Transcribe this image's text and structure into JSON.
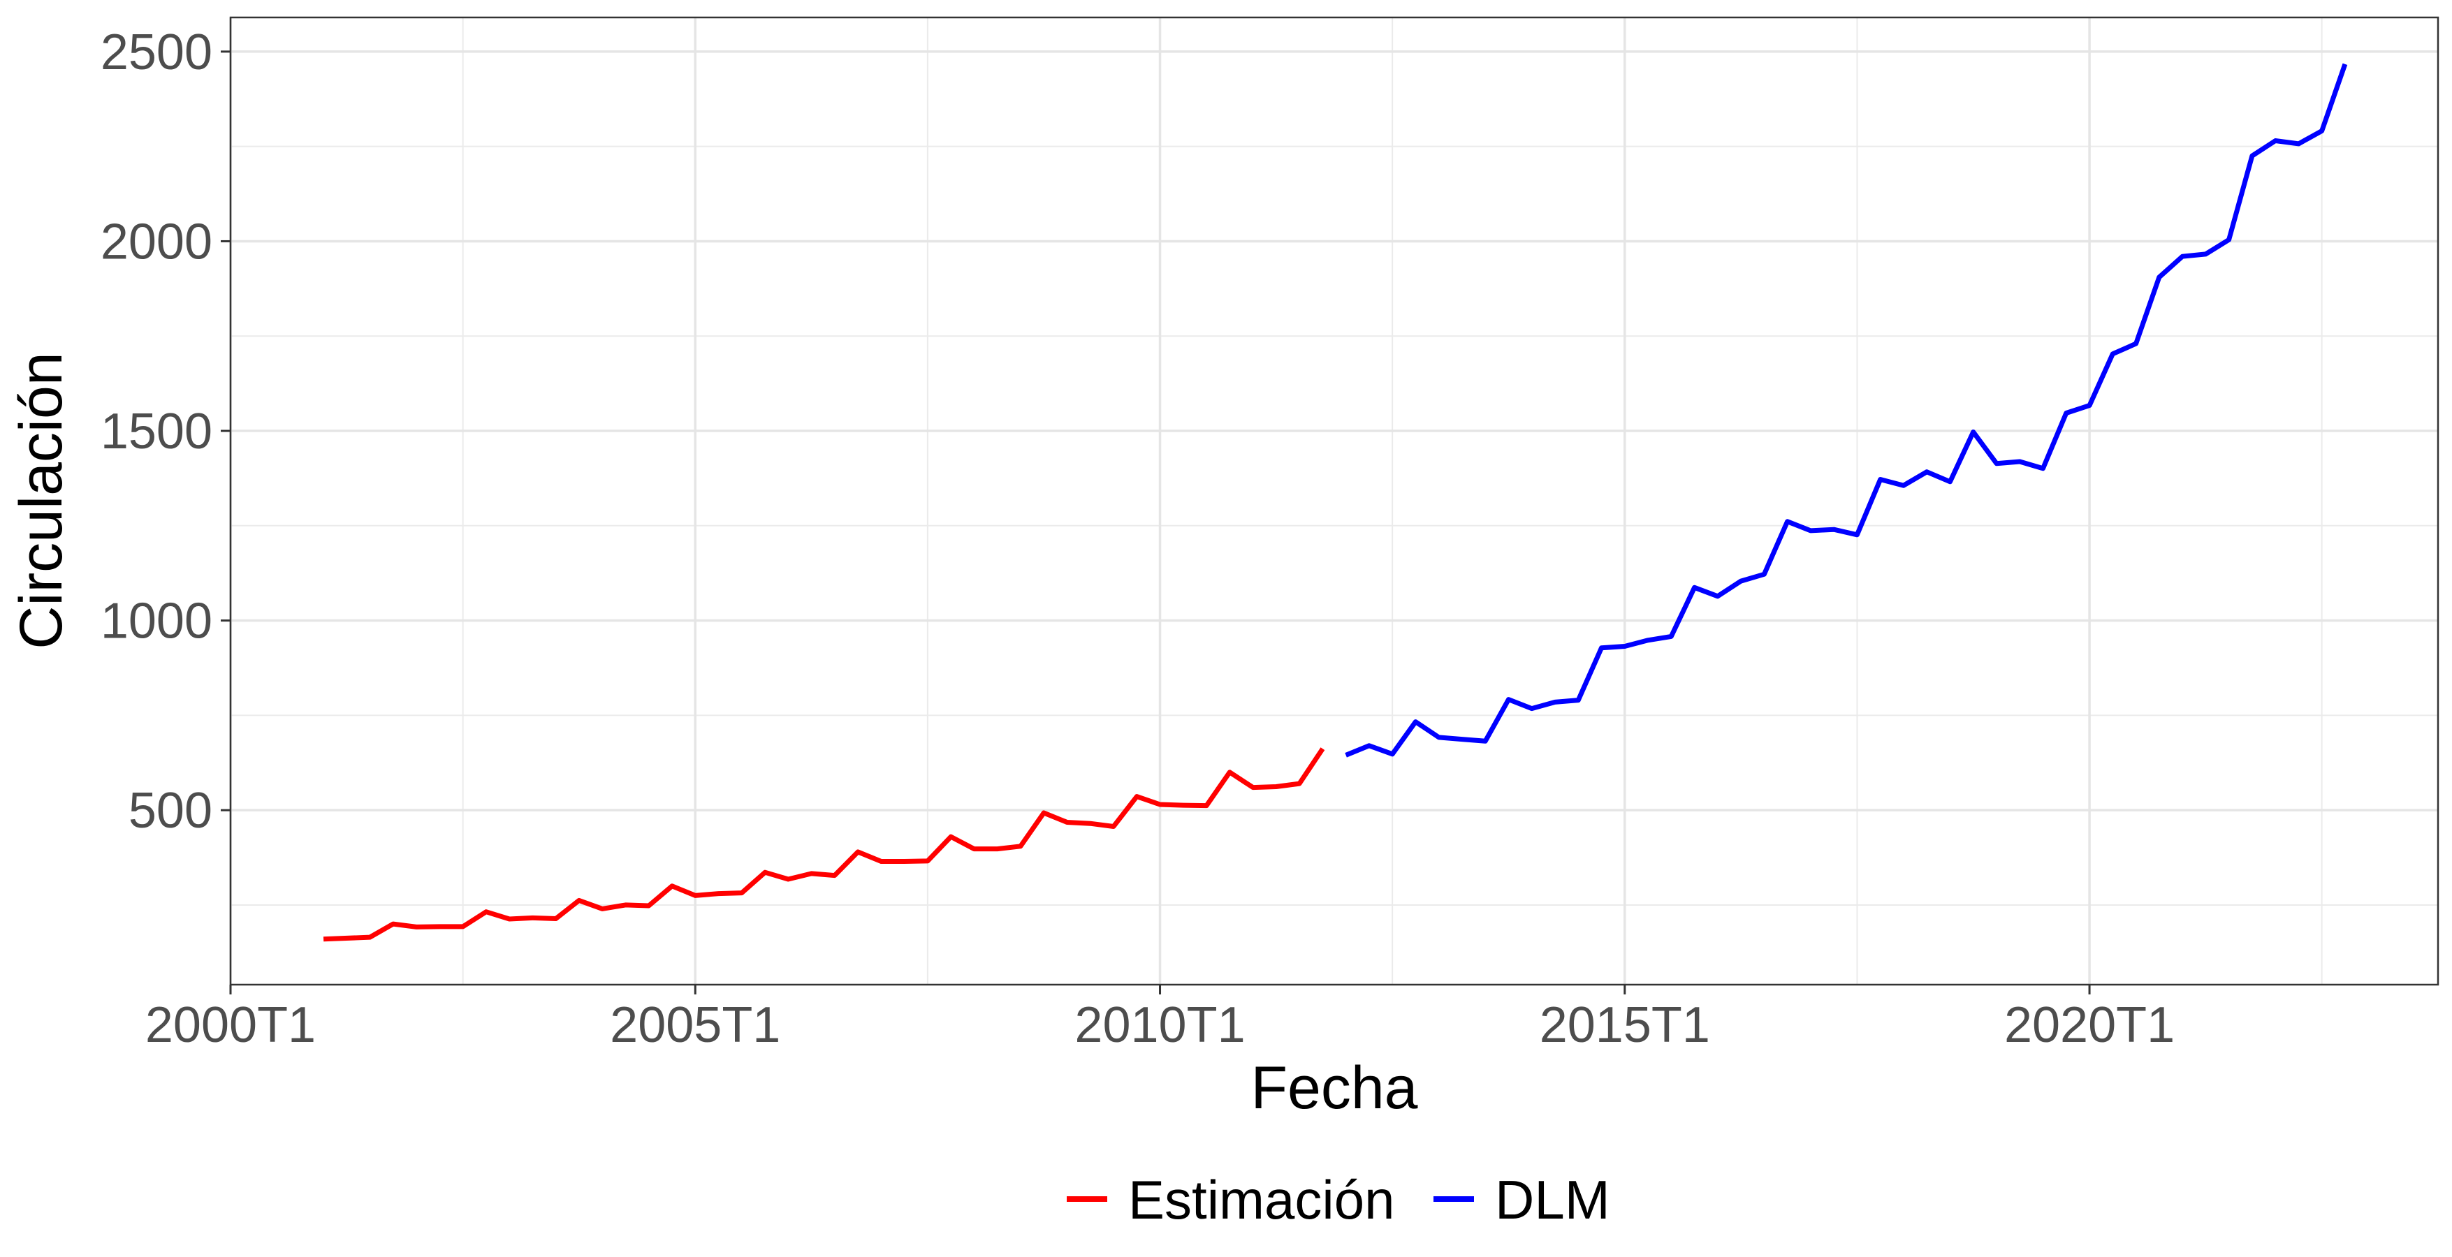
{
  "chart_data": {
    "type": "line",
    "xlabel": "Fecha",
    "ylabel": "Circulación",
    "xlim": [
      2000.0,
      2023.75
    ],
    "ylim": [
      40,
      2590
    ],
    "x_ticks": [
      {
        "value": 2000.0,
        "label": "2000T1"
      },
      {
        "value": 2005.0,
        "label": "2005T1"
      },
      {
        "value": 2010.0,
        "label": "2010T1"
      },
      {
        "value": 2015.0,
        "label": "2015T1"
      },
      {
        "value": 2020.0,
        "label": "2020T1"
      }
    ],
    "y_ticks": [
      500,
      1000,
      1500,
      2000,
      2500
    ],
    "grid": true,
    "legend_position": "bottom",
    "series": [
      {
        "name": "Estimación",
        "color": "#ff0000",
        "x": [
          2001.0,
          2001.5,
          2001.75,
          2002.0,
          2002.25,
          2002.5,
          2002.75,
          2003.0,
          2003.25,
          2003.5,
          2003.75,
          2004.0,
          2004.25,
          2004.5,
          2004.75,
          2005.0,
          2005.25,
          2005.5,
          2005.75,
          2006.0,
          2006.25,
          2006.5,
          2006.75,
          2007.0,
          2007.25,
          2007.5,
          2007.75,
          2008.0,
          2008.25,
          2008.5,
          2008.75,
          2009.0,
          2009.25,
          2009.5,
          2009.75,
          2010.0,
          2010.25,
          2010.5,
          2010.75,
          2011.0,
          2011.25,
          2011.5,
          2011.75
        ],
        "y": [
          160,
          165,
          200,
          192,
          193,
          193,
          232,
          213,
          216,
          214,
          262,
          240,
          250,
          248,
          300,
          275,
          280,
          282,
          336,
          318,
          333,
          328,
          390,
          365,
          365,
          366,
          430,
          398,
          398,
          405,
          493,
          468,
          465,
          457,
          536,
          515,
          513,
          512,
          600,
          560,
          562,
          570,
          662
        ]
      },
      {
        "name": "DLM",
        "color": "#0000ff",
        "x": [
          2012.0,
          2012.25,
          2012.5,
          2012.75,
          2013.0,
          2013.25,
          2013.5,
          2013.75,
          2014.0,
          2014.25,
          2014.5,
          2014.75,
          2015.0,
          2015.25,
          2015.5,
          2015.75,
          2016.0,
          2016.25,
          2016.5,
          2016.75,
          2017.0,
          2017.25,
          2017.5,
          2017.75,
          2018.0,
          2018.25,
          2018.5,
          2018.75,
          2019.0,
          2019.25,
          2019.5,
          2019.75,
          2020.0,
          2020.25,
          2020.5,
          2020.75,
          2021.0,
          2021.25,
          2021.5,
          2021.75,
          2022.0,
          2022.25,
          2022.5,
          2022.75
        ],
        "y": [
          645,
          670,
          648,
          733,
          692,
          687,
          682,
          792,
          768,
          785,
          790,
          928,
          932,
          948,
          958,
          1087,
          1064,
          1104,
          1122,
          1261,
          1237,
          1240,
          1226,
          1372,
          1356,
          1392,
          1366,
          1497,
          1414,
          1419,
          1401,
          1547,
          1567,
          1703,
          1730,
          1905,
          1960,
          1966,
          2004,
          2225,
          2265,
          2257,
          2291,
          2467
        ]
      }
    ]
  }
}
